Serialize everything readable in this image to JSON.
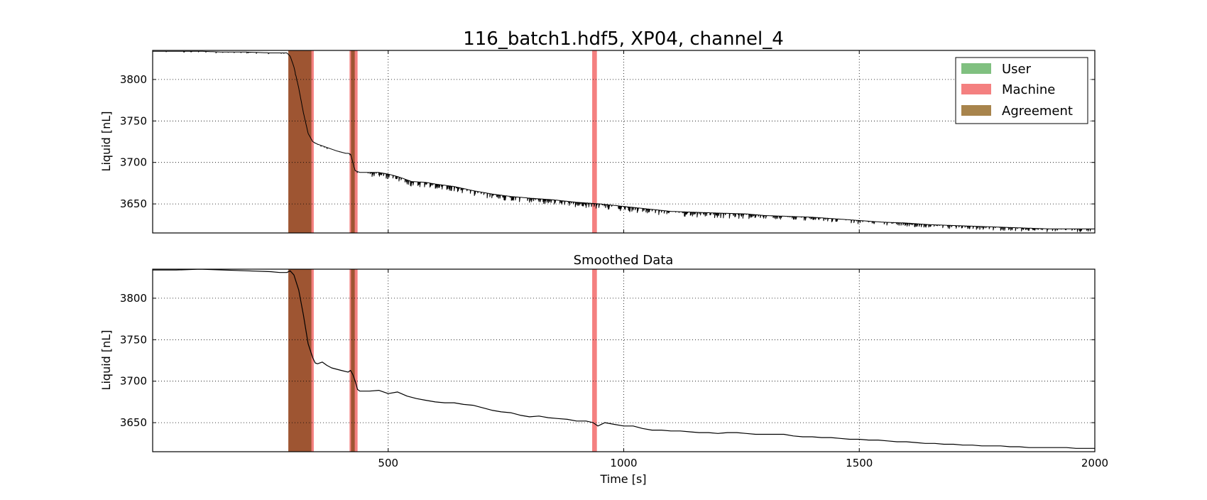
{
  "chart_data": [
    {
      "type": "line",
      "title": "116_batch1.hdf5, XP04, channel_4",
      "xlabel": "",
      "ylabel": "Liquid [nL]",
      "xlim": [
        0,
        2000
      ],
      "ylim": [
        3615,
        3835
      ],
      "yticks": [
        3650,
        3700,
        3750,
        3800
      ],
      "yticklabels": [
        "3650",
        "3700",
        "3750",
        "3800"
      ],
      "xticks": [
        500,
        1000,
        1500
      ],
      "xticklabels": [],
      "grid": true,
      "legend_position": "top-right",
      "legend": [
        {
          "label": "User",
          "color": "#80c080"
        },
        {
          "label": "Machine",
          "color": "#f48080"
        },
        {
          "label": "Agreement",
          "color": "#a8844c"
        }
      ],
      "spans": [
        {
          "kind": "machine",
          "start": 290,
          "end": 342
        },
        {
          "kind": "user",
          "start": 288,
          "end": 337
        },
        {
          "kind": "machine",
          "start": 418,
          "end": 435
        },
        {
          "kind": "user",
          "start": 421,
          "end": 429
        },
        {
          "kind": "machine",
          "start": 933,
          "end": 943
        }
      ],
      "series": [
        {
          "style": "noisy",
          "x": [
            0,
            50,
            100,
            150,
            200,
            250,
            285,
            292,
            300,
            310,
            320,
            330,
            340,
            350,
            370,
            390,
            410,
            415,
            420,
            430,
            440,
            460,
            480,
            500,
            520,
            550,
            580,
            600,
            640,
            680,
            720,
            760,
            800,
            850,
            900,
            950,
            1000,
            1050,
            1100,
            1150,
            1200,
            1260,
            1300,
            1350,
            1400,
            1450,
            1500,
            1550,
            1600,
            1650,
            1700,
            1750,
            1800,
            1850,
            1900,
            1950,
            2000
          ],
          "values": [
            3834,
            3834,
            3834,
            3833,
            3833,
            3832,
            3832,
            3828,
            3815,
            3790,
            3760,
            3735,
            3725,
            3722,
            3718,
            3714,
            3711,
            3711,
            3710,
            3690,
            3688,
            3688,
            3688,
            3686,
            3683,
            3677,
            3676,
            3674,
            3671,
            3666,
            3662,
            3659,
            3657,
            3655,
            3652,
            3650,
            3647,
            3644,
            3641,
            3640,
            3639,
            3638,
            3636,
            3635,
            3634,
            3632,
            3630,
            3628,
            3627,
            3625,
            3624,
            3623,
            3622,
            3621,
            3620,
            3620,
            3620
          ]
        }
      ]
    },
    {
      "type": "line",
      "title": "Smoothed Data",
      "xlabel": "Time [s]",
      "ylabel": "Liquid [nL]",
      "xlim": [
        0,
        2000
      ],
      "ylim": [
        3615,
        3835
      ],
      "yticks": [
        3650,
        3700,
        3750,
        3800
      ],
      "yticklabels": [
        "3650",
        "3700",
        "3750",
        "3800"
      ],
      "xticks": [
        500,
        1000,
        1500,
        2000
      ],
      "xticklabels": [
        "500",
        "1000",
        "1500",
        "2000"
      ],
      "grid": true,
      "spans": [
        {
          "kind": "machine",
          "start": 290,
          "end": 342
        },
        {
          "kind": "user",
          "start": 288,
          "end": 337
        },
        {
          "kind": "machine",
          "start": 418,
          "end": 435
        },
        {
          "kind": "user",
          "start": 421,
          "end": 429
        },
        {
          "kind": "machine",
          "start": 933,
          "end": 943
        }
      ],
      "series": [
        {
          "style": "smooth",
          "x": [
            0,
            50,
            100,
            150,
            200,
            250,
            270,
            285,
            292,
            300,
            310,
            320,
            330,
            340,
            345,
            350,
            360,
            370,
            380,
            400,
            415,
            420,
            425,
            430,
            435,
            440,
            460,
            480,
            500,
            520,
            540,
            560,
            580,
            600,
            620,
            640,
            660,
            680,
            700,
            720,
            740,
            760,
            780,
            800,
            820,
            840,
            860,
            880,
            900,
            920,
            935,
            945,
            960,
            980,
            1000,
            1020,
            1040,
            1060,
            1080,
            1100,
            1120,
            1140,
            1160,
            1180,
            1200,
            1220,
            1240,
            1260,
            1280,
            1300,
            1320,
            1340,
            1360,
            1380,
            1400,
            1420,
            1440,
            1460,
            1480,
            1500,
            1520,
            1540,
            1560,
            1580,
            1600,
            1620,
            1640,
            1660,
            1680,
            1700,
            1720,
            1740,
            1760,
            1780,
            1800,
            1820,
            1840,
            1860,
            1880,
            1900,
            1920,
            1940,
            1960,
            1980,
            2000
          ],
          "values": [
            3834,
            3834,
            3835,
            3834,
            3833,
            3832,
            3831,
            3831,
            3833,
            3828,
            3810,
            3780,
            3745,
            3728,
            3722,
            3721,
            3723,
            3719,
            3716,
            3713,
            3711,
            3713,
            3708,
            3700,
            3690,
            3688,
            3688,
            3689,
            3685,
            3687,
            3682,
            3679,
            3677,
            3675,
            3674,
            3674,
            3672,
            3671,
            3668,
            3665,
            3663,
            3662,
            3659,
            3657,
            3658,
            3656,
            3655,
            3654,
            3652,
            3652,
            3650,
            3646,
            3650,
            3648,
            3646,
            3646,
            3643,
            3641,
            3641,
            3640,
            3640,
            3639,
            3638,
            3638,
            3637,
            3638,
            3638,
            3637,
            3636,
            3636,
            3636,
            3636,
            3634,
            3633,
            3633,
            3632,
            3632,
            3631,
            3630,
            3630,
            3629,
            3629,
            3628,
            3627,
            3627,
            3626,
            3625,
            3625,
            3624,
            3624,
            3623,
            3623,
            3622,
            3622,
            3622,
            3621,
            3621,
            3620,
            3620,
            3620,
            3620,
            3620,
            3619,
            3619,
            3619
          ]
        }
      ]
    }
  ]
}
